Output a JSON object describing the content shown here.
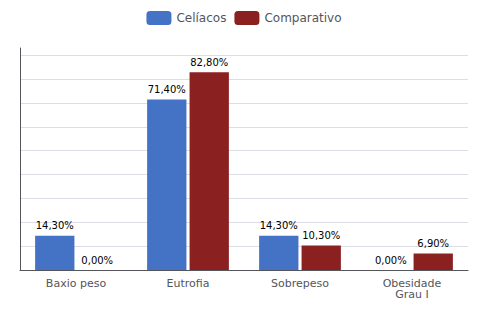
{
  "chart_data": {
    "type": "bar",
    "categories": [
      "Baxio peso",
      "Eutrofia",
      "Sobrepeso",
      "Obesidade\nGrau I"
    ],
    "series": [
      {
        "name": "Celíacos",
        "color": "#4472C4",
        "values": [
          14.3,
          71.4,
          14.3,
          0.0
        ],
        "value_labels": [
          "14,30%",
          "71,40%",
          "14,30%",
          "0,00%"
        ]
      },
      {
        "name": "Comparativo",
        "color": "#8B2020",
        "values": [
          0.0,
          82.8,
          10.3,
          6.9
        ],
        "value_labels": [
          "0,00%",
          "82,80%",
          "10,30%",
          "6,90%"
        ]
      }
    ],
    "ylim": [
      0,
      93
    ],
    "yticks": [
      0,
      10,
      20,
      30,
      40,
      50,
      60,
      70,
      80,
      90
    ],
    "grid": true,
    "legend": "top",
    "data_labels": true,
    "tick_labels": "x"
  }
}
